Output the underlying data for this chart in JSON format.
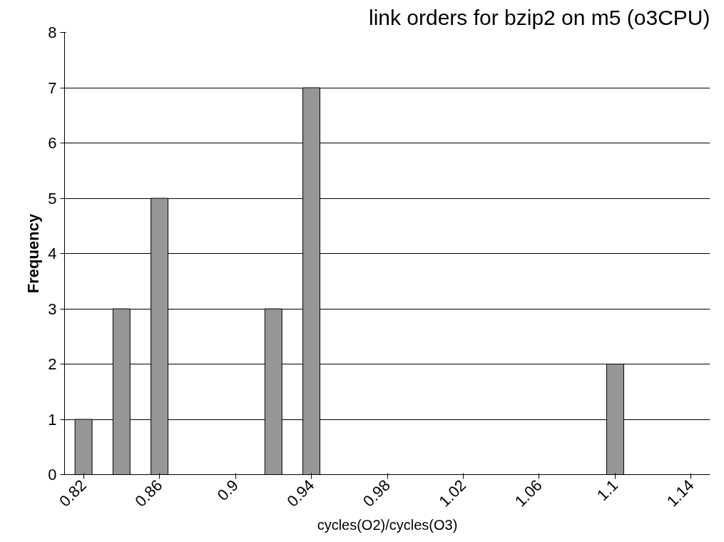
{
  "chart_data": {
    "type": "bar",
    "title": "link orders for bzip2 on m5 (o3CPU)",
    "xlabel": "cycles(O2)/cycles(O3)",
    "ylabel": "Frequency",
    "categories": [
      "0.82",
      null,
      "0.86",
      null,
      "0.9",
      null,
      "0.94",
      null,
      "0.98",
      null,
      "1.02",
      null,
      "1.06",
      null,
      "1.1",
      null,
      "1.14"
    ],
    "values": [
      1,
      3,
      5,
      0,
      0,
      3,
      7,
      0,
      0,
      0,
      0,
      0,
      0,
      0,
      2,
      0,
      0
    ],
    "color": "#969696",
    "ylim": [
      0,
      8
    ],
    "yticks": [
      0,
      1,
      2,
      3,
      4,
      5,
      6,
      7,
      8
    ],
    "grid": "y"
  }
}
